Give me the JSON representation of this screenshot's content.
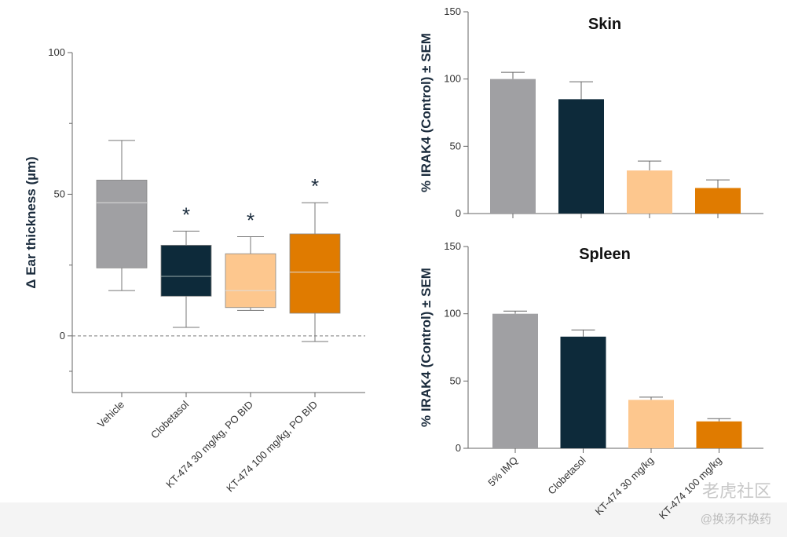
{
  "chart_data": [
    {
      "type": "box",
      "ylabel": "Δ Ear thickness (µm)",
      "categories": [
        "Vehicle",
        "Clobetasol",
        "KT-474 30 mg/kg, PO BID",
        "KT-474 100 mg/kg, PO BID"
      ],
      "min": [
        16,
        3,
        9,
        -2
      ],
      "q1": [
        24,
        14,
        10,
        8
      ],
      "median": [
        47,
        21,
        16,
        22.5
      ],
      "q3": [
        55,
        32,
        29,
        36
      ],
      "max": [
        69,
        37,
        35,
        47
      ],
      "colors": [
        "#a0a0a3",
        "#0d2a3a",
        "#fdc78e",
        "#e07b00"
      ],
      "significance": [
        null,
        "*",
        "*",
        "*"
      ],
      "reference_line": 0,
      "ylim": [
        -20,
        100
      ],
      "yticks": [
        0,
        50,
        100
      ],
      "yminorticks": [
        -12.5,
        25,
        75
      ]
    },
    {
      "type": "bar",
      "title": "Skin",
      "ylabel": "% IRAK4 (Control) ± SEM",
      "categories": [
        null,
        null,
        null,
        null
      ],
      "values": [
        100,
        85,
        32,
        19
      ],
      "errors": [
        5,
        13,
        7,
        6
      ],
      "colors": [
        "#a0a0a3",
        "#0d2a3a",
        "#fdc78e",
        "#e07b00"
      ],
      "ylim": [
        0,
        150
      ],
      "yticks": [
        0,
        50,
        100,
        150
      ]
    },
    {
      "type": "bar",
      "title": "Spleen",
      "ylabel": "% IRAK4 (Control) ± SEM",
      "categories": [
        "5% IMQ",
        "Clobetasol",
        "KT-474  30 mg/kg",
        "KT-474 100 mg/kg"
      ],
      "values": [
        100,
        83,
        36,
        20
      ],
      "errors": [
        2,
        5,
        2,
        2
      ],
      "colors": [
        "#a0a0a3",
        "#0d2a3a",
        "#fdc78e",
        "#e07b00"
      ],
      "ylim": [
        0,
        150
      ],
      "yticks": [
        0,
        50,
        100,
        150
      ]
    }
  ],
  "watermark": {
    "logo": "老虎社区",
    "handle": "@换汤不换药"
  }
}
